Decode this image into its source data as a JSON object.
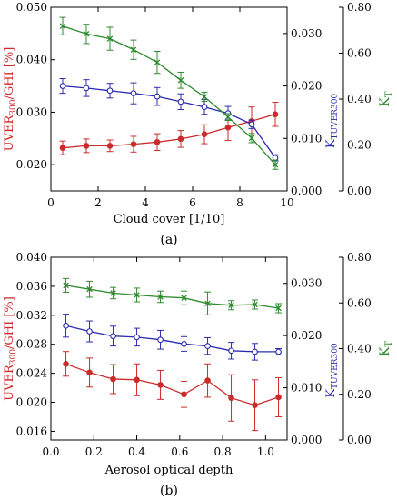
{
  "chart_data": [
    {
      "type": "line",
      "panel_label": "(a)",
      "xlabel": "Cloud cover [1/10]",
      "xlim": [
        0,
        10
      ],
      "x_ticks": [
        0,
        2,
        4,
        6,
        8,
        10
      ],
      "x_tick_labels": [
        "0",
        "2",
        "4",
        "6",
        "8",
        "10"
      ],
      "x": [
        0.5,
        1.5,
        2.5,
        3.5,
        4.5,
        5.5,
        6.5,
        7.5,
        8.5,
        9.5
      ],
      "axes": [
        {
          "id": "uver",
          "label_main": "UVER",
          "label_sub": "300",
          "label_tail": "/GHI [%]",
          "color": "#cc2b2b",
          "lim": [
            0.015,
            0.05
          ],
          "ticks": [
            0.02,
            0.03,
            0.04,
            0.05
          ],
          "tick_labels": [
            "0.020",
            "0.030",
            "0.040",
            "0.050"
          ]
        },
        {
          "id": "ktuver",
          "label_main": "K",
          "label_sub": "TUVER300",
          "label_tail": "",
          "color": "#2b2bb0",
          "lim": [
            0,
            0.035
          ],
          "ticks": [
            0,
            0.01,
            0.02,
            0.03
          ],
          "tick_labels": [
            "0.000",
            "0.010",
            "0.020",
            "0.030"
          ]
        },
        {
          "id": "kt",
          "label_main": "K",
          "label_sub": "T",
          "label_tail": "",
          "color": "#2e8b2e",
          "lim": [
            0,
            0.8
          ],
          "ticks": [
            0,
            0.2,
            0.4,
            0.6,
            0.8
          ],
          "tick_labels": [
            "0.00",
            "0.20",
            "0.40",
            "0.60",
            "0.80"
          ]
        }
      ],
      "series": [
        {
          "axis": "uver",
          "color": "#cc2b2b",
          "marker": "filled-circle",
          "values": [
            0.0232,
            0.0236,
            0.0236,
            0.0239,
            0.0243,
            0.0249,
            0.0258,
            0.0271,
            0.0283,
            0.0296
          ],
          "errors": [
            0.0013,
            0.0013,
            0.0011,
            0.0015,
            0.0016,
            0.0016,
            0.0018,
            0.0025,
            0.0027,
            0.0023
          ]
        },
        {
          "axis": "ktuver",
          "color": "#2b2bb0",
          "marker": "open-circle",
          "values": [
            0.02,
            0.0196,
            0.0191,
            0.0186,
            0.018,
            0.017,
            0.016,
            0.0148,
            0.0127,
            0.0063
          ],
          "errors": [
            0.0014,
            0.0016,
            0.0014,
            0.002,
            0.0017,
            0.0015,
            0.0014,
            0.0013,
            0.0008,
            0.0006
          ]
        },
        {
          "axis": "kt",
          "color": "#2e8b2e",
          "marker": "cross",
          "values": [
            0.718,
            0.684,
            0.663,
            0.615,
            0.56,
            0.482,
            0.41,
            0.322,
            0.23,
            0.114
          ],
          "errors": [
            0.038,
            0.042,
            0.05,
            0.042,
            0.048,
            0.035,
            0.02,
            0.015,
            0.02,
            0.02
          ]
        }
      ]
    },
    {
      "type": "line",
      "panel_label": "(b)",
      "xlabel": "Aerosol optical depth",
      "xlim": [
        0,
        1.1
      ],
      "x_ticks": [
        0,
        0.2,
        0.4,
        0.6,
        0.8,
        1.0
      ],
      "x_tick_labels": [
        "0.0",
        "0.2",
        "0.4",
        "0.6",
        "0.8",
        "1.0"
      ],
      "x": [
        0.07,
        0.18,
        0.29,
        0.4,
        0.51,
        0.62,
        0.73,
        0.84,
        0.95,
        1.06
      ],
      "axes": [
        {
          "id": "uver",
          "label_main": "UVER",
          "label_sub": "300",
          "label_tail": "/GHI [%]",
          "color": "#cc2b2b",
          "lim": [
            0.0148,
            0.04
          ],
          "ticks": [
            0.016,
            0.02,
            0.024,
            0.028,
            0.032,
            0.036,
            0.04
          ],
          "tick_labels": [
            "0.016",
            "0.020",
            "0.024",
            "0.028",
            "0.032",
            "0.036",
            "0.040"
          ]
        },
        {
          "id": "ktuver",
          "label_main": "K",
          "label_sub": "TUVER300",
          "label_tail": "",
          "color": "#2b2bb0",
          "lim": [
            0,
            0.035
          ],
          "ticks": [
            0,
            0.01,
            0.02,
            0.03
          ],
          "tick_labels": [
            "0.000",
            "0.010",
            "0.020",
            "0.030"
          ]
        },
        {
          "id": "kt",
          "label_main": "K",
          "label_sub": "T",
          "label_tail": "",
          "color": "#2e8b2e",
          "lim": [
            0,
            0.8
          ],
          "ticks": [
            0,
            0.2,
            0.4,
            0.6,
            0.8
          ],
          "tick_labels": [
            "0.00",
            "0.20",
            "0.40",
            "0.60",
            "0.80"
          ]
        }
      ],
      "series": [
        {
          "axis": "uver",
          "color": "#cc2b2b",
          "marker": "filled-circle",
          "values": [
            0.0253,
            0.0241,
            0.0232,
            0.0231,
            0.0224,
            0.0211,
            0.023,
            0.0206,
            0.0196,
            0.0207
          ],
          "errors": [
            0.0017,
            0.002,
            0.002,
            0.0022,
            0.002,
            0.0018,
            0.0023,
            0.0032,
            0.0035,
            0.0027
          ]
        },
        {
          "axis": "ktuver",
          "color": "#2b2bb0",
          "marker": "open-circle",
          "values": [
            0.0219,
            0.0208,
            0.0199,
            0.0197,
            0.0192,
            0.0184,
            0.018,
            0.0171,
            0.0169,
            0.0169
          ],
          "errors": [
            0.0022,
            0.002,
            0.0019,
            0.0017,
            0.0018,
            0.0014,
            0.0016,
            0.0016,
            0.0016,
            0.0006
          ]
        },
        {
          "axis": "kt",
          "color": "#2e8b2e",
          "marker": "cross",
          "values": [
            0.677,
            0.66,
            0.643,
            0.635,
            0.627,
            0.622,
            0.598,
            0.59,
            0.593,
            0.577
          ],
          "errors": [
            0.03,
            0.035,
            0.025,
            0.03,
            0.025,
            0.03,
            0.05,
            0.02,
            0.02,
            0.02
          ]
        }
      ]
    }
  ]
}
